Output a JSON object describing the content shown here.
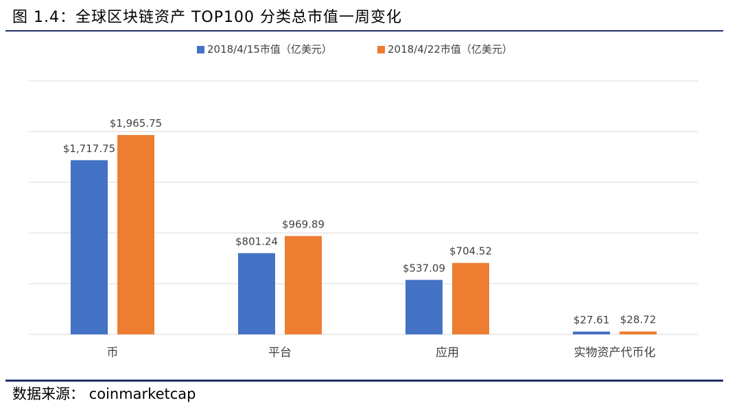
{
  "figure": {
    "title": "图 1.4：全球区块链资产 TOP100 分类总市值一周变化",
    "source_label": "数据来源：",
    "source_value": "coinmarketcap"
  },
  "colors": {
    "series_1": "#4472c4",
    "series_2": "#ed7d31",
    "grid": "#d9d9d9",
    "rule": "#1f2f6b",
    "label_text": "#404040"
  },
  "chart_data": {
    "type": "bar",
    "title": "",
    "xlabel": "",
    "ylabel": "",
    "categories": [
      "币",
      "平台",
      "应用",
      "实物资产代币化"
    ],
    "series": [
      {
        "name": "2018/4/15市值（亿美元）",
        "values": [
          1717.75,
          801.24,
          537.09,
          27.61
        ],
        "labels": [
          "$1,717.75",
          "$801.24",
          "$537.09",
          "$27.61"
        ]
      },
      {
        "name": "2018/4/22市值（亿美元）",
        "values": [
          1965.75,
          969.89,
          704.52,
          28.72
        ],
        "labels": [
          "$1,965.75",
          "$969.89",
          "$704.52",
          "$28.72"
        ]
      }
    ],
    "ylim": [
      0,
      2500
    ],
    "grid": true,
    "legend_position": "top-center",
    "y_axis_labels_visible": false
  }
}
